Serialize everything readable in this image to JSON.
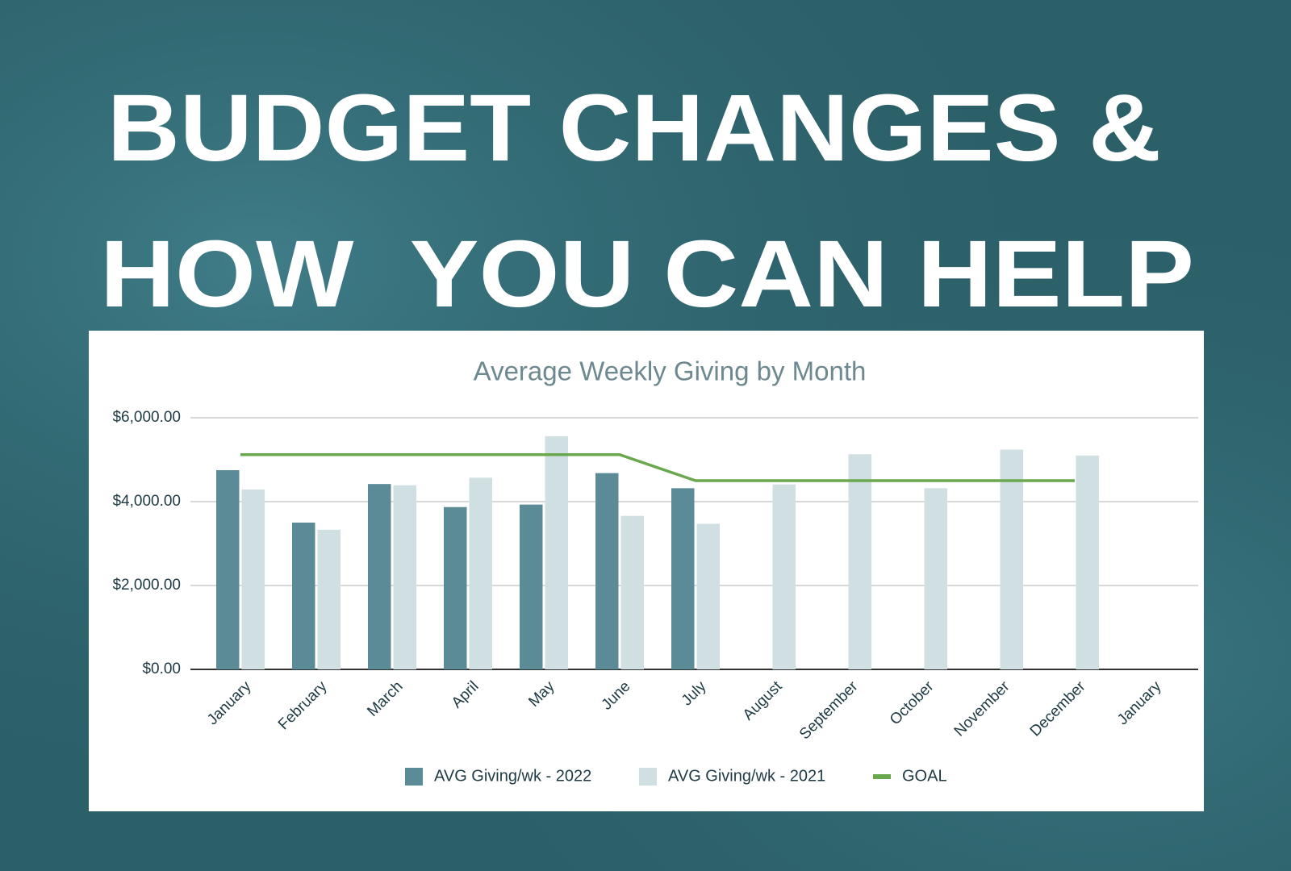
{
  "headline": [
    "BUDGET CHANGES &",
    "HOW  YOU CAN HELP"
  ],
  "chart_data": {
    "type": "bar-line",
    "title": "Average Weekly Giving by Month",
    "categories": [
      "January",
      "February",
      "March",
      "April",
      "May",
      "June",
      "July",
      "August",
      "September",
      "October",
      "November",
      "December",
      "January"
    ],
    "series": [
      {
        "name": "AVG Giving/wk - 2022",
        "type": "bar",
        "color": "#5b8b97",
        "values": [
          4750,
          3500,
          4420,
          3870,
          3930,
          4680,
          4320,
          null,
          null,
          null,
          null,
          null,
          null
        ]
      },
      {
        "name": "AVG Giving/wk - 2021",
        "type": "bar",
        "color": "#cfdfe2",
        "values": [
          4290,
          3330,
          4390,
          4570,
          5560,
          3660,
          3470,
          4410,
          5130,
          4320,
          5240,
          5100,
          null
        ]
      },
      {
        "name": "GOAL",
        "type": "line",
        "color": "#6aa84f",
        "values": [
          5120,
          5120,
          5120,
          5120,
          5120,
          5120,
          4500,
          4500,
          4500,
          4500,
          4500,
          4500,
          null
        ]
      }
    ],
    "ylim": [
      0,
      6000
    ],
    "yticks": [
      {
        "value": 0,
        "label": "$0.00"
      },
      {
        "value": 2000,
        "label": "$2,000.00"
      },
      {
        "value": 4000,
        "label": "$4,000.00"
      },
      {
        "value": 6000,
        "label": "$6,000.00"
      }
    ],
    "grid": true,
    "legend": "bottom"
  }
}
